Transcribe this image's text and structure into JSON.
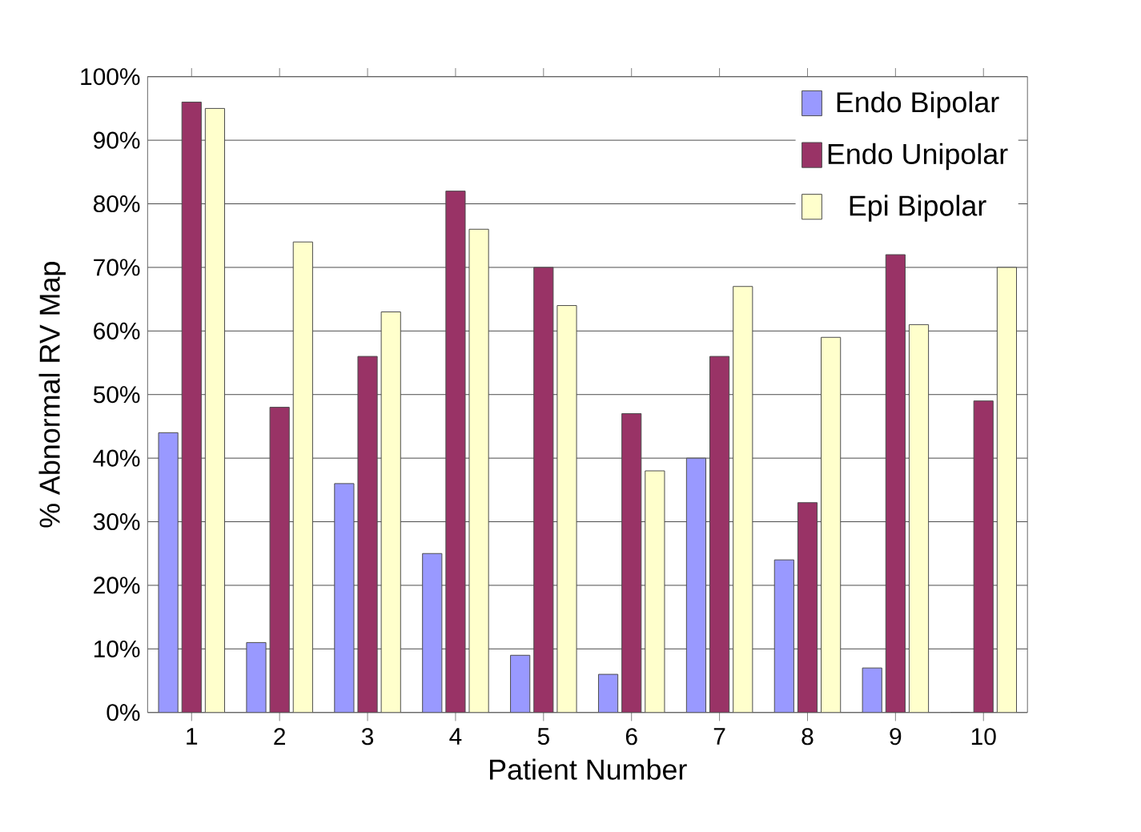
{
  "chart_data": {
    "type": "bar",
    "xlabel": "Patient Number",
    "ylabel": "% Abnormal RV Map",
    "categories": [
      "1",
      "2",
      "3",
      "4",
      "5",
      "6",
      "7",
      "8",
      "9",
      "10"
    ],
    "series": [
      {
        "name": "Endo Bipolar",
        "color": "#9999ff",
        "values": [
          44,
          11,
          36,
          25,
          9,
          6,
          40,
          24,
          7,
          0
        ]
      },
      {
        "name": "Endo Unipolar",
        "color": "#993366",
        "values": [
          96,
          48,
          56,
          82,
          70,
          47,
          56,
          33,
          72,
          49
        ]
      },
      {
        "name": "Epi Bipolar",
        "color": "#ffffcc",
        "values": [
          95,
          74,
          63,
          76,
          64,
          38,
          67,
          59,
          61,
          70
        ]
      }
    ],
    "ylim": [
      0,
      100
    ],
    "yticks": [
      {
        "value": 0,
        "label": "0%"
      },
      {
        "value": 10,
        "label": "10%"
      },
      {
        "value": 20,
        "label": "20%"
      },
      {
        "value": 30,
        "label": "30%"
      },
      {
        "value": 40,
        "label": "40%"
      },
      {
        "value": 50,
        "label": "50%"
      },
      {
        "value": 60,
        "label": "60%"
      },
      {
        "value": 70,
        "label": "70%"
      },
      {
        "value": 80,
        "label": "80%"
      },
      {
        "value": 90,
        "label": "90%"
      },
      {
        "value": 100,
        "label": "100%"
      }
    ],
    "grid": "y",
    "legend": "top right"
  }
}
